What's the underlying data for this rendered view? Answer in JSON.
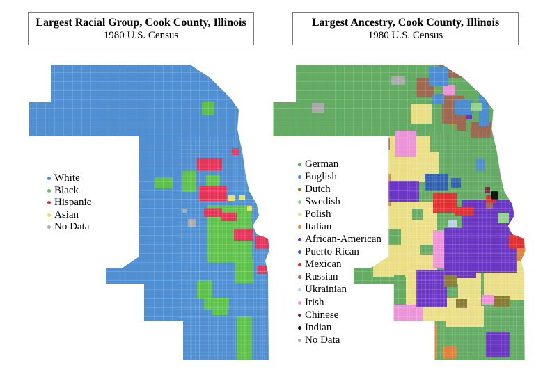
{
  "left_panel": {
    "title": "Largest Racial Group, Cook County, Illinois",
    "subtitle": "1980 U.S. Census",
    "legend": [
      {
        "label": "White",
        "color": "#4f8fd2"
      },
      {
        "label": "Black",
        "color": "#5ec24a"
      },
      {
        "label": "Hispanic",
        "color": "#e73156"
      },
      {
        "label": "Asian",
        "color": "#e8e34f"
      },
      {
        "label": "No Data",
        "color": "#aaaaaa"
      }
    ]
  },
  "right_panel": {
    "title": "Largest Ancestry, Cook County, Illinois",
    "subtitle": "1980 U.S. Census",
    "legend": [
      {
        "label": "German",
        "color": "#64ab64"
      },
      {
        "label": "English",
        "color": "#4d8ed3"
      },
      {
        "label": "Dutch",
        "color": "#877b32"
      },
      {
        "label": "Swedish",
        "color": "#8fd489"
      },
      {
        "label": "Polish",
        "color": "#eadf87"
      },
      {
        "label": "Italian",
        "color": "#e0823d"
      },
      {
        "label": "African-American",
        "color": "#6c36c4"
      },
      {
        "label": "Puerto Rican",
        "color": "#2f5fae"
      },
      {
        "label": "Mexican",
        "color": "#df2f2f"
      },
      {
        "label": "Russian",
        "color": "#9e6950"
      },
      {
        "label": "Ukrainian",
        "color": "#b9cfe2"
      },
      {
        "label": "Irish",
        "color": "#ed94d9"
      },
      {
        "label": "Chinese",
        "color": "#7c2041"
      },
      {
        "label": "Indian",
        "color": "#141414"
      },
      {
        "label": "No Data",
        "color": "#aaaaaa"
      }
    ]
  }
}
